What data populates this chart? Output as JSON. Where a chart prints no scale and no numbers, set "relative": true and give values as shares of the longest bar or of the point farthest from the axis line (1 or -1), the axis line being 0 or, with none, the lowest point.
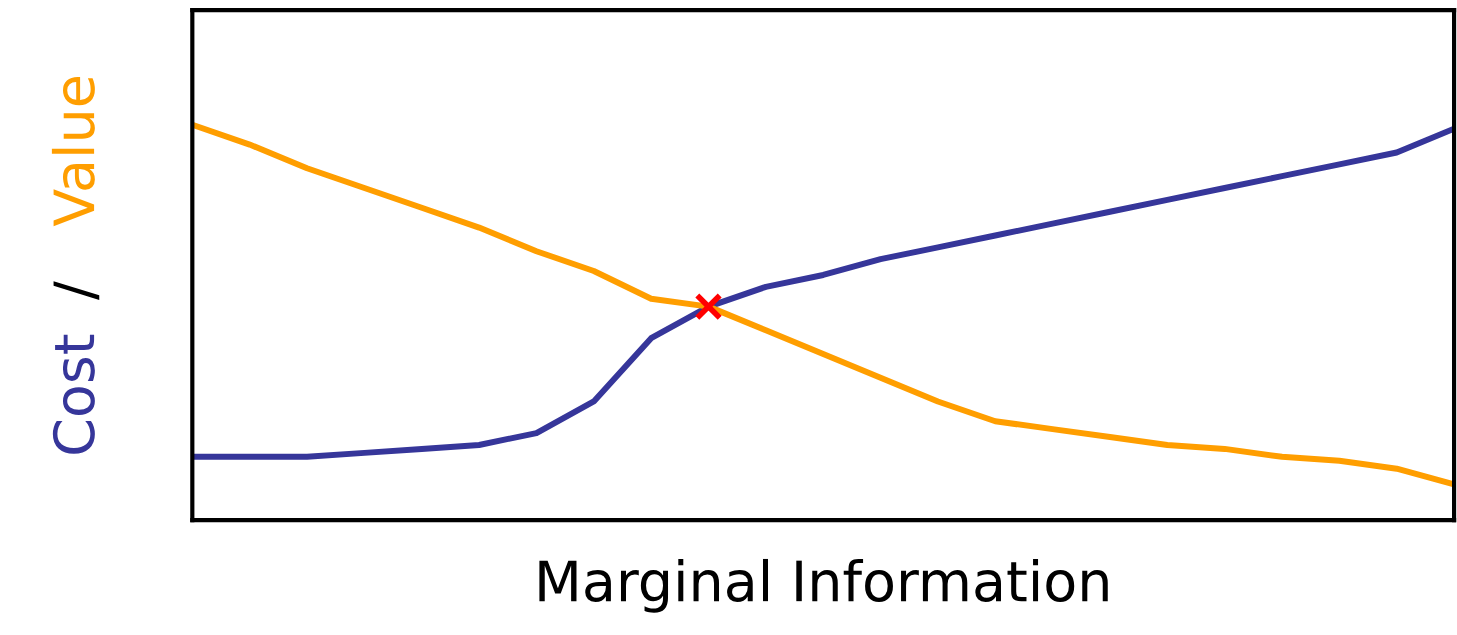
{
  "chart_data": {
    "type": "line",
    "relative": true,
    "xlabel": "Marginal Information",
    "ylabel": "/",
    "categories": [
      null,
      null,
      null,
      null,
      null,
      null,
      null,
      null,
      null,
      null,
      null,
      null,
      null,
      null,
      null,
      null,
      null,
      null,
      null,
      null,
      null,
      null,
      null
    ],
    "series": [
      {
        "name": "Cost",
        "color": "#36369a",
        "values": [
          0.16,
          0.16,
          0.16,
          0.17,
          0.18,
          0.19,
          0.22,
          0.3,
          0.46,
          0.54,
          0.59,
          0.62,
          0.66,
          0.69,
          0.72,
          0.75,
          0.78,
          0.81,
          0.84,
          0.87,
          0.9,
          0.93,
          0.99
        ]
      },
      {
        "name": "Value",
        "color": "#ff9e00",
        "values": [
          1.0,
          0.95,
          0.89,
          0.84,
          0.79,
          0.74,
          0.68,
          0.63,
          0.56,
          0.54,
          0.48,
          0.42,
          0.36,
          0.3,
          0.25,
          0.23,
          0.21,
          0.19,
          0.18,
          0.16,
          0.15,
          0.13,
          0.09
        ]
      }
    ]
  }
}
